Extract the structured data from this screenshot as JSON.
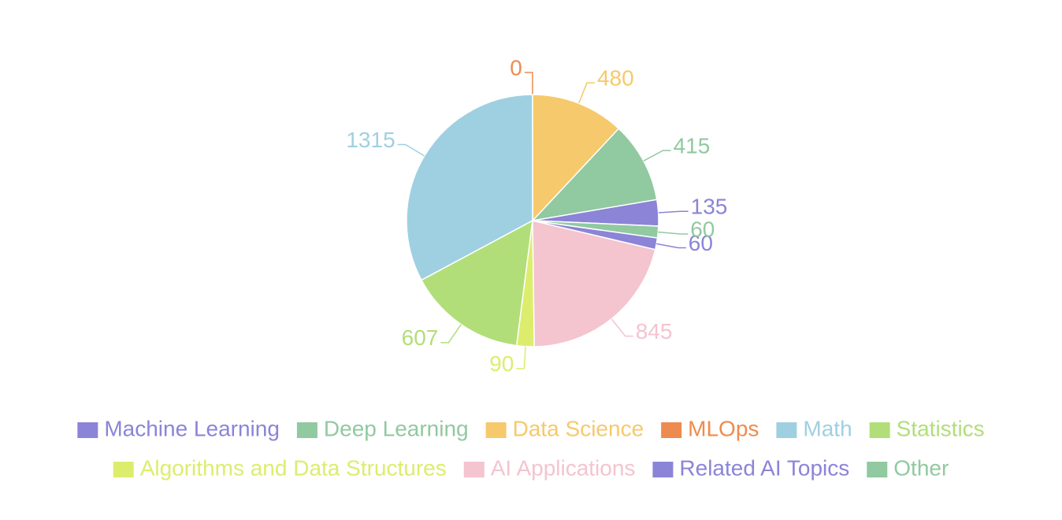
{
  "chart_data": {
    "type": "pie",
    "categories": [
      "Machine Learning",
      "Deep Learning",
      "Data Science",
      "MLOps",
      "Math",
      "Statistics",
      "Algorithms and Data Structures",
      "AI Applications",
      "Related AI Topics",
      "Other"
    ],
    "values": [
      135,
      415,
      480,
      0,
      1315,
      607,
      90,
      845,
      60,
      60
    ],
    "colors": [
      "#8b84d7",
      "#91c9a0",
      "#f6c96c",
      "#ee8b4e",
      "#9fd0e1",
      "#b2de79",
      "#dced6e",
      "#f4c4cf",
      "#8b84d7",
      "#91c9a0"
    ],
    "legend": "bottom"
  }
}
